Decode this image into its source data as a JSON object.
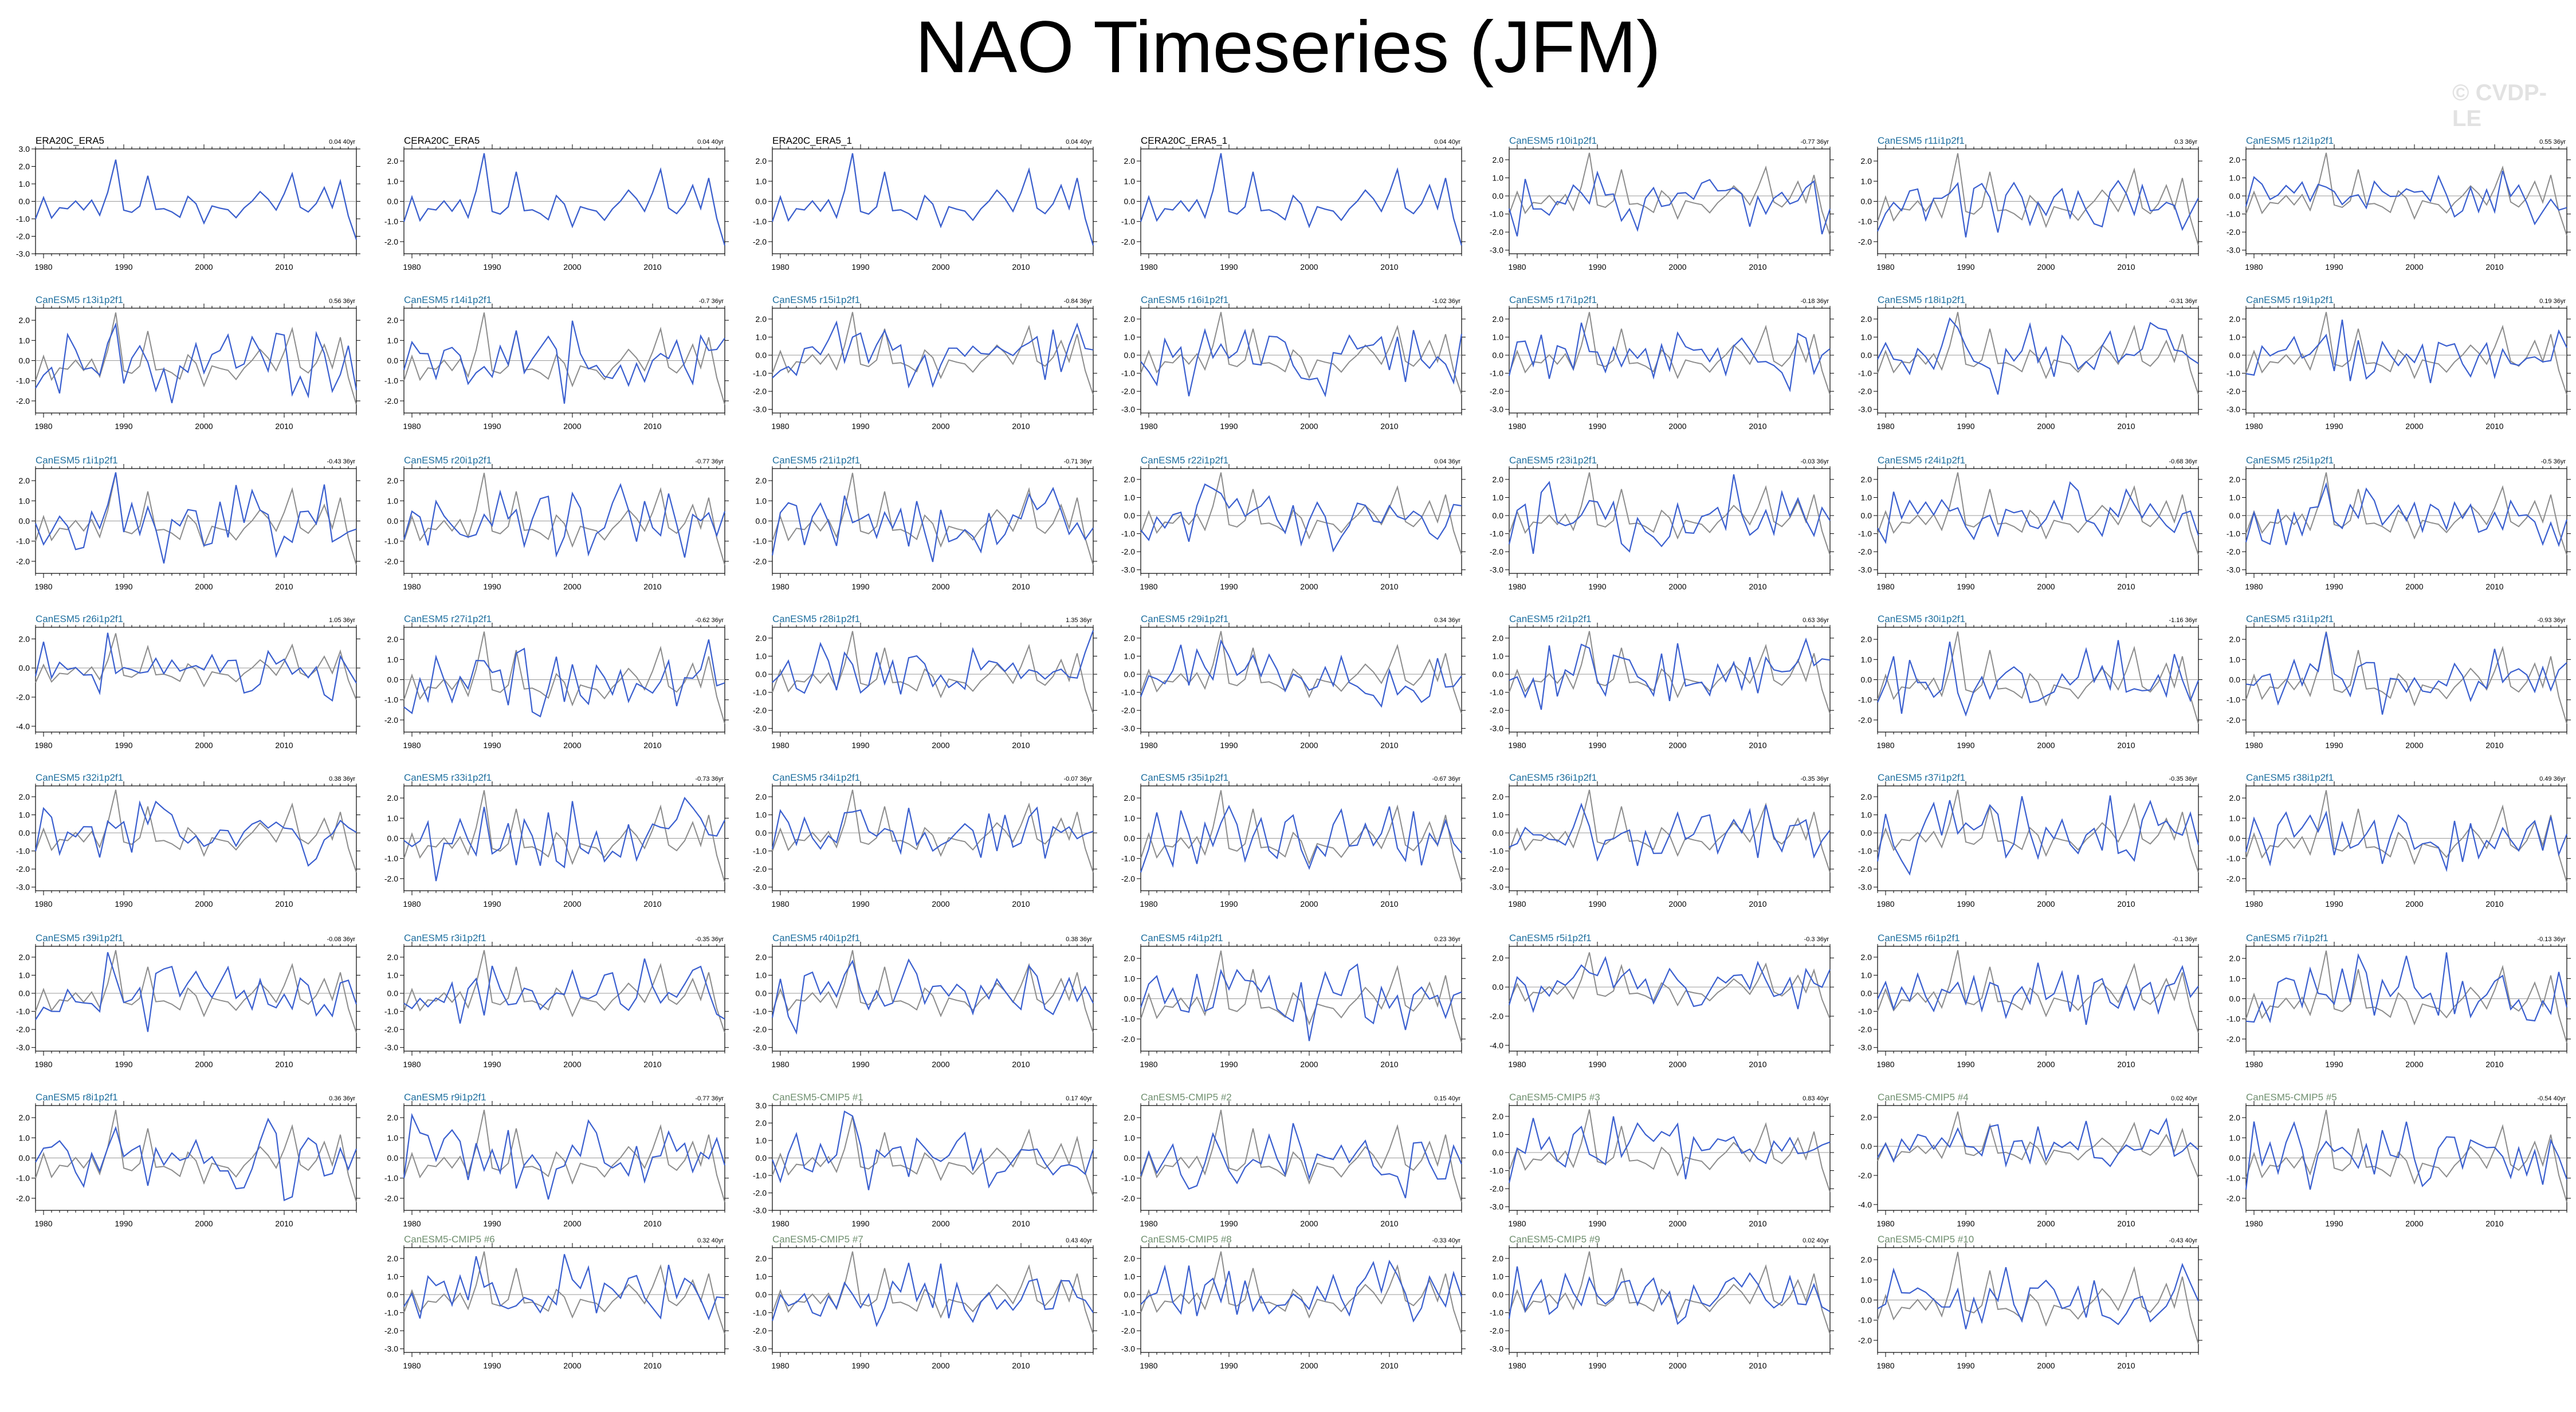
{
  "title": "NAO Timeseries (JFM)",
  "watermark": "© CVDP-LE",
  "colors": {
    "obs_title": "#000000",
    "member_title": "#1f6f9f",
    "cmip_title": "#6f8f6f",
    "model_line": "#3a5fcf",
    "obs_line": "#8c8c8c",
    "zero_line": "#9a9a9a"
  },
  "chart_data": {
    "type": "line",
    "x_ticks": [
      1980,
      1990,
      2000,
      2010
    ],
    "x_range": [
      1979,
      2019
    ],
    "panels": [
      {
        "title": "ERA20C_ERA5",
        "trend": "0.04 40yr",
        "kind": "obs",
        "y_ticks": [
          "3.0",
          "2.0",
          "1.0",
          "0.0",
          "-1.0",
          "-2.0",
          "-3.0"
        ],
        "ylim": [
          -3.0,
          3.0
        ],
        "seed": 11
      },
      {
        "title": "CERA20C_ERA5",
        "trend": "0.04 40yr",
        "kind": "obs",
        "y_ticks": [
          "2.0",
          "1.0",
          "0.0",
          "-1.0",
          "-2.0"
        ],
        "ylim": [
          -2.6,
          2.6
        ],
        "seed": 11
      },
      {
        "title": "ERA20C_ERA5_1",
        "trend": "0.04 40yr",
        "kind": "obs",
        "y_ticks": [
          "2.0",
          "1.0",
          "0.0",
          "-1.0",
          "-2.0"
        ],
        "ylim": [
          -2.6,
          2.6
        ],
        "seed": 11
      },
      {
        "title": "CERA20C_ERA5_1",
        "trend": "0.04 40yr",
        "kind": "obs",
        "y_ticks": [
          "2.0",
          "1.0",
          "0.0",
          "-1.0",
          "-2.0"
        ],
        "ylim": [
          -2.6,
          2.6
        ],
        "seed": 11
      },
      {
        "title": "CanESM5 r10i1p2f1",
        "trend": "-0.77 36yr",
        "kind": "member",
        "y_ticks": [
          "2.0",
          "1.0",
          "0.0",
          "-1.0",
          "-2.0",
          "-3.0"
        ],
        "ylim": [
          -3.2,
          2.6
        ],
        "seed": 10
      },
      {
        "title": "CanESM5 r11i1p2f1",
        "trend": "0.3 36yr",
        "kind": "member",
        "y_ticks": [
          "2.0",
          "1.0",
          "0.0",
          "-1.0",
          "-2.0"
        ],
        "ylim": [
          -2.6,
          2.6
        ],
        "seed": 21
      },
      {
        "title": "CanESM5 r12i1p2f1",
        "trend": "0.55 36yr",
        "kind": "member",
        "y_ticks": [
          "2.0",
          "1.0",
          "0.0",
          "-1.0",
          "-2.0",
          "-3.0"
        ],
        "ylim": [
          -3.2,
          2.6
        ],
        "seed": 32
      },
      {
        "title": "CanESM5 r13i1p2f1",
        "trend": "0.56 36yr",
        "kind": "member",
        "y_ticks": [
          "2.0",
          "1.0",
          "0.0",
          "-1.0",
          "-2.0"
        ],
        "ylim": [
          -2.6,
          2.6
        ],
        "seed": 43
      },
      {
        "title": "CanESM5 r14i1p2f1",
        "trend": "-0.7 36yr",
        "kind": "member",
        "y_ticks": [
          "2.0",
          "1.0",
          "0.0",
          "-1.0",
          "-2.0"
        ],
        "ylim": [
          -2.6,
          2.6
        ],
        "seed": 54
      },
      {
        "title": "CanESM5 r15i1p2f1",
        "trend": "-0.84 36yr",
        "kind": "member",
        "y_ticks": [
          "2.0",
          "1.0",
          "0.0",
          "-1.0",
          "-2.0",
          "-3.0"
        ],
        "ylim": [
          -3.2,
          2.6
        ],
        "seed": 65
      },
      {
        "title": "CanESM5 r16i1p2f1",
        "trend": "-1.02 36yr",
        "kind": "member",
        "y_ticks": [
          "2.0",
          "1.0",
          "0.0",
          "-1.0",
          "-2.0",
          "-3.0"
        ],
        "ylim": [
          -3.2,
          2.6
        ],
        "seed": 76
      },
      {
        "title": "CanESM5 r17i1p2f1",
        "trend": "-0.18 36yr",
        "kind": "member",
        "y_ticks": [
          "2.0",
          "1.0",
          "0.0",
          "-1.0",
          "-2.0",
          "-3.0"
        ],
        "ylim": [
          -3.2,
          2.6
        ],
        "seed": 87
      },
      {
        "title": "CanESM5 r18i1p2f1",
        "trend": "-0.31 36yr",
        "kind": "member",
        "y_ticks": [
          "2.0",
          "1.0",
          "0.0",
          "-1.0",
          "-2.0",
          "-3.0"
        ],
        "ylim": [
          -3.2,
          2.6
        ],
        "seed": 98
      },
      {
        "title": "CanESM5 r19i1p2f1",
        "trend": "0.19 36yr",
        "kind": "member",
        "y_ticks": [
          "2.0",
          "1.0",
          "0.0",
          "-1.0",
          "-2.0",
          "-3.0"
        ],
        "ylim": [
          -3.2,
          2.6
        ],
        "seed": 109
      },
      {
        "title": "CanESM5 r1i1p2f1",
        "trend": "-0.43 36yr",
        "kind": "member",
        "y_ticks": [
          "2.0",
          "1.0",
          "0.0",
          "-1.0",
          "-2.0"
        ],
        "ylim": [
          -2.6,
          2.6
        ],
        "seed": 120
      },
      {
        "title": "CanESM5 r20i1p2f1",
        "trend": "-0.77 36yr",
        "kind": "member",
        "y_ticks": [
          "2.0",
          "1.0",
          "0.0",
          "-1.0",
          "-2.0"
        ],
        "ylim": [
          -2.6,
          2.6
        ],
        "seed": 131
      },
      {
        "title": "CanESM5 r21i1p2f1",
        "trend": "-0.71 36yr",
        "kind": "member",
        "y_ticks": [
          "2.0",
          "1.0",
          "0.0",
          "-1.0",
          "-2.0"
        ],
        "ylim": [
          -2.6,
          2.6
        ],
        "seed": 142
      },
      {
        "title": "CanESM5 r22i1p2f1",
        "trend": "0.04 36yr",
        "kind": "member",
        "y_ticks": [
          "2.0",
          "1.0",
          "0.0",
          "-1.0",
          "-2.0",
          "-3.0"
        ],
        "ylim": [
          -3.2,
          2.6
        ],
        "seed": 153
      },
      {
        "title": "CanESM5 r23i1p2f1",
        "trend": "-0.03 36yr",
        "kind": "member",
        "y_ticks": [
          "2.0",
          "1.0",
          "0.0",
          "-1.0",
          "-2.0",
          "-3.0"
        ],
        "ylim": [
          -3.2,
          2.6
        ],
        "seed": 164
      },
      {
        "title": "CanESM5 r24i1p2f1",
        "trend": "-0.68 36yr",
        "kind": "member",
        "y_ticks": [
          "2.0",
          "1.0",
          "0.0",
          "-1.0",
          "-2.0",
          "-3.0"
        ],
        "ylim": [
          -3.2,
          2.6
        ],
        "seed": 175
      },
      {
        "title": "CanESM5 r25i1p2f1",
        "trend": "-0.5 36yr",
        "kind": "member",
        "y_ticks": [
          "2.0",
          "1.0",
          "0.0",
          "-1.0",
          "-2.0",
          "-3.0"
        ],
        "ylim": [
          -3.2,
          2.6
        ],
        "seed": 186
      },
      {
        "title": "CanESM5 r26i1p2f1",
        "trend": "1.05 36yr",
        "kind": "member",
        "y_ticks": [
          "2.0",
          "0.0",
          "-2.0",
          "-4.0"
        ],
        "ylim": [
          -4.4,
          2.8
        ],
        "seed": 197
      },
      {
        "title": "CanESM5 r27i1p2f1",
        "trend": "-0.62 36yr",
        "kind": "member",
        "y_ticks": [
          "2.0",
          "1.0",
          "0.0",
          "-1.0",
          "-2.0"
        ],
        "ylim": [
          -2.6,
          2.6
        ],
        "seed": 208
      },
      {
        "title": "CanESM5 r28i1p2f1",
        "trend": "1.35 36yr",
        "kind": "member",
        "y_ticks": [
          "2.0",
          "1.0",
          "0.0",
          "-1.0",
          "-2.0",
          "-3.0"
        ],
        "ylim": [
          -3.2,
          2.6
        ],
        "seed": 219
      },
      {
        "title": "CanESM5 r29i1p2f1",
        "trend": "0.34 36yr",
        "kind": "member",
        "y_ticks": [
          "2.0",
          "1.0",
          "0.0",
          "-1.0",
          "-2.0",
          "-3.0"
        ],
        "ylim": [
          -3.2,
          2.6
        ],
        "seed": 230
      },
      {
        "title": "CanESM5 r2i1p2f1",
        "trend": "0.63 36yr",
        "kind": "member",
        "y_ticks": [
          "2.0",
          "1.0",
          "0.0",
          "-1.0",
          "-2.0",
          "-3.0"
        ],
        "ylim": [
          -3.2,
          2.6
        ],
        "seed": 241
      },
      {
        "title": "CanESM5 r30i1p2f1",
        "trend": "-1.16 36yr",
        "kind": "member",
        "y_ticks": [
          "2.0",
          "1.0",
          "0.0",
          "-1.0",
          "-2.0"
        ],
        "ylim": [
          -2.6,
          2.6
        ],
        "seed": 252
      },
      {
        "title": "CanESM5 r31i1p2f1",
        "trend": "-0.93 36yr",
        "kind": "member",
        "y_ticks": [
          "2.0",
          "1.0",
          "0.0",
          "-1.0",
          "-2.0"
        ],
        "ylim": [
          -2.6,
          2.6
        ],
        "seed": 263
      },
      {
        "title": "CanESM5 r32i1p2f1",
        "trend": "0.38 36yr",
        "kind": "member",
        "y_ticks": [
          "2.0",
          "1.0",
          "0.0",
          "-1.0",
          "-2.0",
          "-3.0"
        ],
        "ylim": [
          -3.2,
          2.6
        ],
        "seed": 274
      },
      {
        "title": "CanESM5 r33i1p2f1",
        "trend": "-0.73 36yr",
        "kind": "member",
        "y_ticks": [
          "2.0",
          "1.0",
          "0.0",
          "-1.0",
          "-2.0"
        ],
        "ylim": [
          -2.6,
          2.6
        ],
        "seed": 285
      },
      {
        "title": "CanESM5 r34i1p2f1",
        "trend": "-0.07 36yr",
        "kind": "member",
        "y_ticks": [
          "2.0",
          "1.0",
          "0.0",
          "-1.0",
          "-2.0",
          "-3.0"
        ],
        "ylim": [
          -3.2,
          2.6
        ],
        "seed": 296
      },
      {
        "title": "CanESM5 r35i1p2f1",
        "trend": "-0.67 36yr",
        "kind": "member",
        "y_ticks": [
          "2.0",
          "1.0",
          "0.0",
          "-1.0",
          "-2.0"
        ],
        "ylim": [
          -2.6,
          2.6
        ],
        "seed": 307
      },
      {
        "title": "CanESM5 r36i1p2f1",
        "trend": "-0.35 36yr",
        "kind": "member",
        "y_ticks": [
          "2.0",
          "1.0",
          "0.0",
          "-1.0",
          "-2.0",
          "-3.0"
        ],
        "ylim": [
          -3.2,
          2.6
        ],
        "seed": 318
      },
      {
        "title": "CanESM5 r37i1p2f1",
        "trend": "-0.35 36yr",
        "kind": "member",
        "y_ticks": [
          "2.0",
          "1.0",
          "0.0",
          "-1.0",
          "-2.0",
          "-3.0"
        ],
        "ylim": [
          -3.2,
          2.6
        ],
        "seed": 329
      },
      {
        "title": "CanESM5 r38i1p2f1",
        "trend": "0.49 36yr",
        "kind": "member",
        "y_ticks": [
          "2.0",
          "1.0",
          "0.0",
          "-1.0",
          "-2.0"
        ],
        "ylim": [
          -2.6,
          2.6
        ],
        "seed": 340
      },
      {
        "title": "CanESM5 r39i1p2f1",
        "trend": "-0.08 36yr",
        "kind": "member",
        "y_ticks": [
          "2.0",
          "1.0",
          "0.0",
          "-1.0",
          "-2.0",
          "-3.0"
        ],
        "ylim": [
          -3.2,
          2.6
        ],
        "seed": 351
      },
      {
        "title": "CanESM5 r3i1p2f1",
        "trend": "-0.35 36yr",
        "kind": "member",
        "y_ticks": [
          "2.0",
          "1.0",
          "0.0",
          "-1.0",
          "-2.0",
          "-3.0"
        ],
        "ylim": [
          -3.2,
          2.6
        ],
        "seed": 362
      },
      {
        "title": "CanESM5 r40i1p2f1",
        "trend": "0.38 36yr",
        "kind": "member",
        "y_ticks": [
          "2.0",
          "1.0",
          "0.0",
          "-1.0",
          "-2.0",
          "-3.0"
        ],
        "ylim": [
          -3.2,
          2.6
        ],
        "seed": 373
      },
      {
        "title": "CanESM5 r4i1p2f1",
        "trend": "0.23 36yr",
        "kind": "member",
        "y_ticks": [
          "2.0",
          "1.0",
          "0.0",
          "-1.0",
          "-2.0"
        ],
        "ylim": [
          -2.6,
          2.6
        ],
        "seed": 384
      },
      {
        "title": "CanESM5 r5i1p2f1",
        "trend": "-0.3 36yr",
        "kind": "member",
        "y_ticks": [
          "2.0",
          "0.0",
          "-2.0",
          "-4.0"
        ],
        "ylim": [
          -4.4,
          2.8
        ],
        "seed": 395
      },
      {
        "title": "CanESM5 r6i1p2f1",
        "trend": "-0.1 36yr",
        "kind": "member",
        "y_ticks": [
          "2.0",
          "1.0",
          "0.0",
          "-1.0",
          "-2.0",
          "-3.0"
        ],
        "ylim": [
          -3.2,
          2.6
        ],
        "seed": 406
      },
      {
        "title": "CanESM5 r7i1p2f1",
        "trend": "-0.13 36yr",
        "kind": "member",
        "y_ticks": [
          "2.0",
          "1.0",
          "0.0",
          "-1.0",
          "-2.0"
        ],
        "ylim": [
          -2.6,
          2.6
        ],
        "seed": 417
      },
      {
        "title": "CanESM5 r8i1p2f1",
        "trend": "0.36 36yr",
        "kind": "member",
        "y_ticks": [
          "2.0",
          "1.0",
          "0.0",
          "-1.0",
          "-2.0"
        ],
        "ylim": [
          -2.6,
          2.6
        ],
        "seed": 428
      },
      {
        "title": "CanESM5 r9i1p2f1",
        "trend": "-0.77 36yr",
        "kind": "member",
        "y_ticks": [
          "2.0",
          "1.0",
          "0.0",
          "-1.0",
          "-2.0"
        ],
        "ylim": [
          -2.6,
          2.6
        ],
        "seed": 439
      },
      {
        "title": "CanESM5-CMIP5 #1",
        "trend": "0.17 40yr",
        "kind": "cmip",
        "y_ticks": [
          "3.0",
          "2.0",
          "1.0",
          "0.0",
          "-1.0",
          "-2.0",
          "-3.0"
        ],
        "ylim": [
          -3.0,
          3.0
        ],
        "seed": 450
      },
      {
        "title": "CanESM5-CMIP5 #2",
        "trend": "0.15 40yr",
        "kind": "cmip",
        "y_ticks": [
          "2.0",
          "1.0",
          "0.0",
          "-1.0",
          "-2.0"
        ],
        "ylim": [
          -2.6,
          2.6
        ],
        "seed": 461
      },
      {
        "title": "CanESM5-CMIP5 #3",
        "trend": "0.83 40yr",
        "kind": "cmip",
        "y_ticks": [
          "2.0",
          "1.0",
          "0.0",
          "-1.0",
          "-2.0",
          "-3.0"
        ],
        "ylim": [
          -3.2,
          2.6
        ],
        "seed": 472
      },
      {
        "title": "CanESM5-CMIP5 #4",
        "trend": "0.02 40yr",
        "kind": "cmip",
        "y_ticks": [
          "2.0",
          "0.0",
          "-2.0",
          "-4.0"
        ],
        "ylim": [
          -4.4,
          2.8
        ],
        "seed": 483
      },
      {
        "title": "CanESM5-CMIP5 #5",
        "trend": "-0.54 40yr",
        "kind": "cmip",
        "y_ticks": [
          "2.0",
          "1.0",
          "0.0",
          "-1.0",
          "-2.0"
        ],
        "ylim": [
          -2.6,
          2.6
        ],
        "seed": 494
      },
      {
        "title": "CanESM5-CMIP5 #6",
        "trend": "0.32 40yr",
        "kind": "cmip",
        "y_ticks": [
          "2.0",
          "1.0",
          "0.0",
          "-1.0",
          "-2.0",
          "-3.0"
        ],
        "ylim": [
          -3.2,
          2.6
        ],
        "seed": 505
      },
      {
        "title": "CanESM5-CMIP5 #7",
        "trend": "0.43 40yr",
        "kind": "cmip",
        "y_ticks": [
          "2.0",
          "1.0",
          "0.0",
          "-1.0",
          "-2.0",
          "-3.0"
        ],
        "ylim": [
          -3.2,
          2.6
        ],
        "seed": 516
      },
      {
        "title": "CanESM5-CMIP5 #8",
        "trend": "-0.33 40yr",
        "kind": "cmip",
        "y_ticks": [
          "2.0",
          "1.0",
          "0.0",
          "-1.0",
          "-2.0",
          "-3.0"
        ],
        "ylim": [
          -3.2,
          2.6
        ],
        "seed": 527
      },
      {
        "title": "CanESM5-CMIP5 #9",
        "trend": "0.02 40yr",
        "kind": "cmip",
        "y_ticks": [
          "2.0",
          "1.0",
          "0.0",
          "-1.0",
          "-2.0",
          "-3.0"
        ],
        "ylim": [
          -3.2,
          2.6
        ],
        "seed": 538
      },
      {
        "title": "CanESM5-CMIP5 #10",
        "trend": "-0.43 40yr",
        "kind": "cmip",
        "y_ticks": [
          "2.0",
          "1.0",
          "0.0",
          "-1.0",
          "-2.0"
        ],
        "ylim": [
          -2.6,
          2.6
        ],
        "seed": 549
      }
    ]
  }
}
